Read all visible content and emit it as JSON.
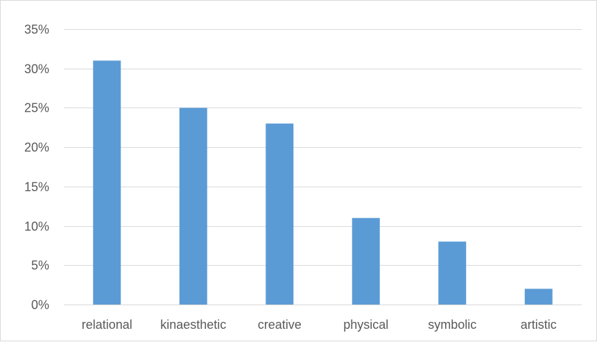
{
  "chart_data": {
    "type": "bar",
    "categories": [
      "relational",
      "kinaesthetic",
      "creative",
      "physical",
      "symbolic",
      "artistic"
    ],
    "values": [
      31,
      25,
      23,
      11,
      8,
      2
    ],
    "title": "",
    "xlabel": "",
    "ylabel": "",
    "ylim": [
      0,
      35
    ],
    "yticks": [
      0,
      5,
      10,
      15,
      20,
      25,
      30,
      35
    ],
    "ytick_labels": [
      "0%",
      "5%",
      "10%",
      "15%",
      "20%",
      "25%",
      "30%",
      "35%"
    ],
    "grid": true,
    "legend": "none",
    "bar_color": "#5b9bd5"
  }
}
